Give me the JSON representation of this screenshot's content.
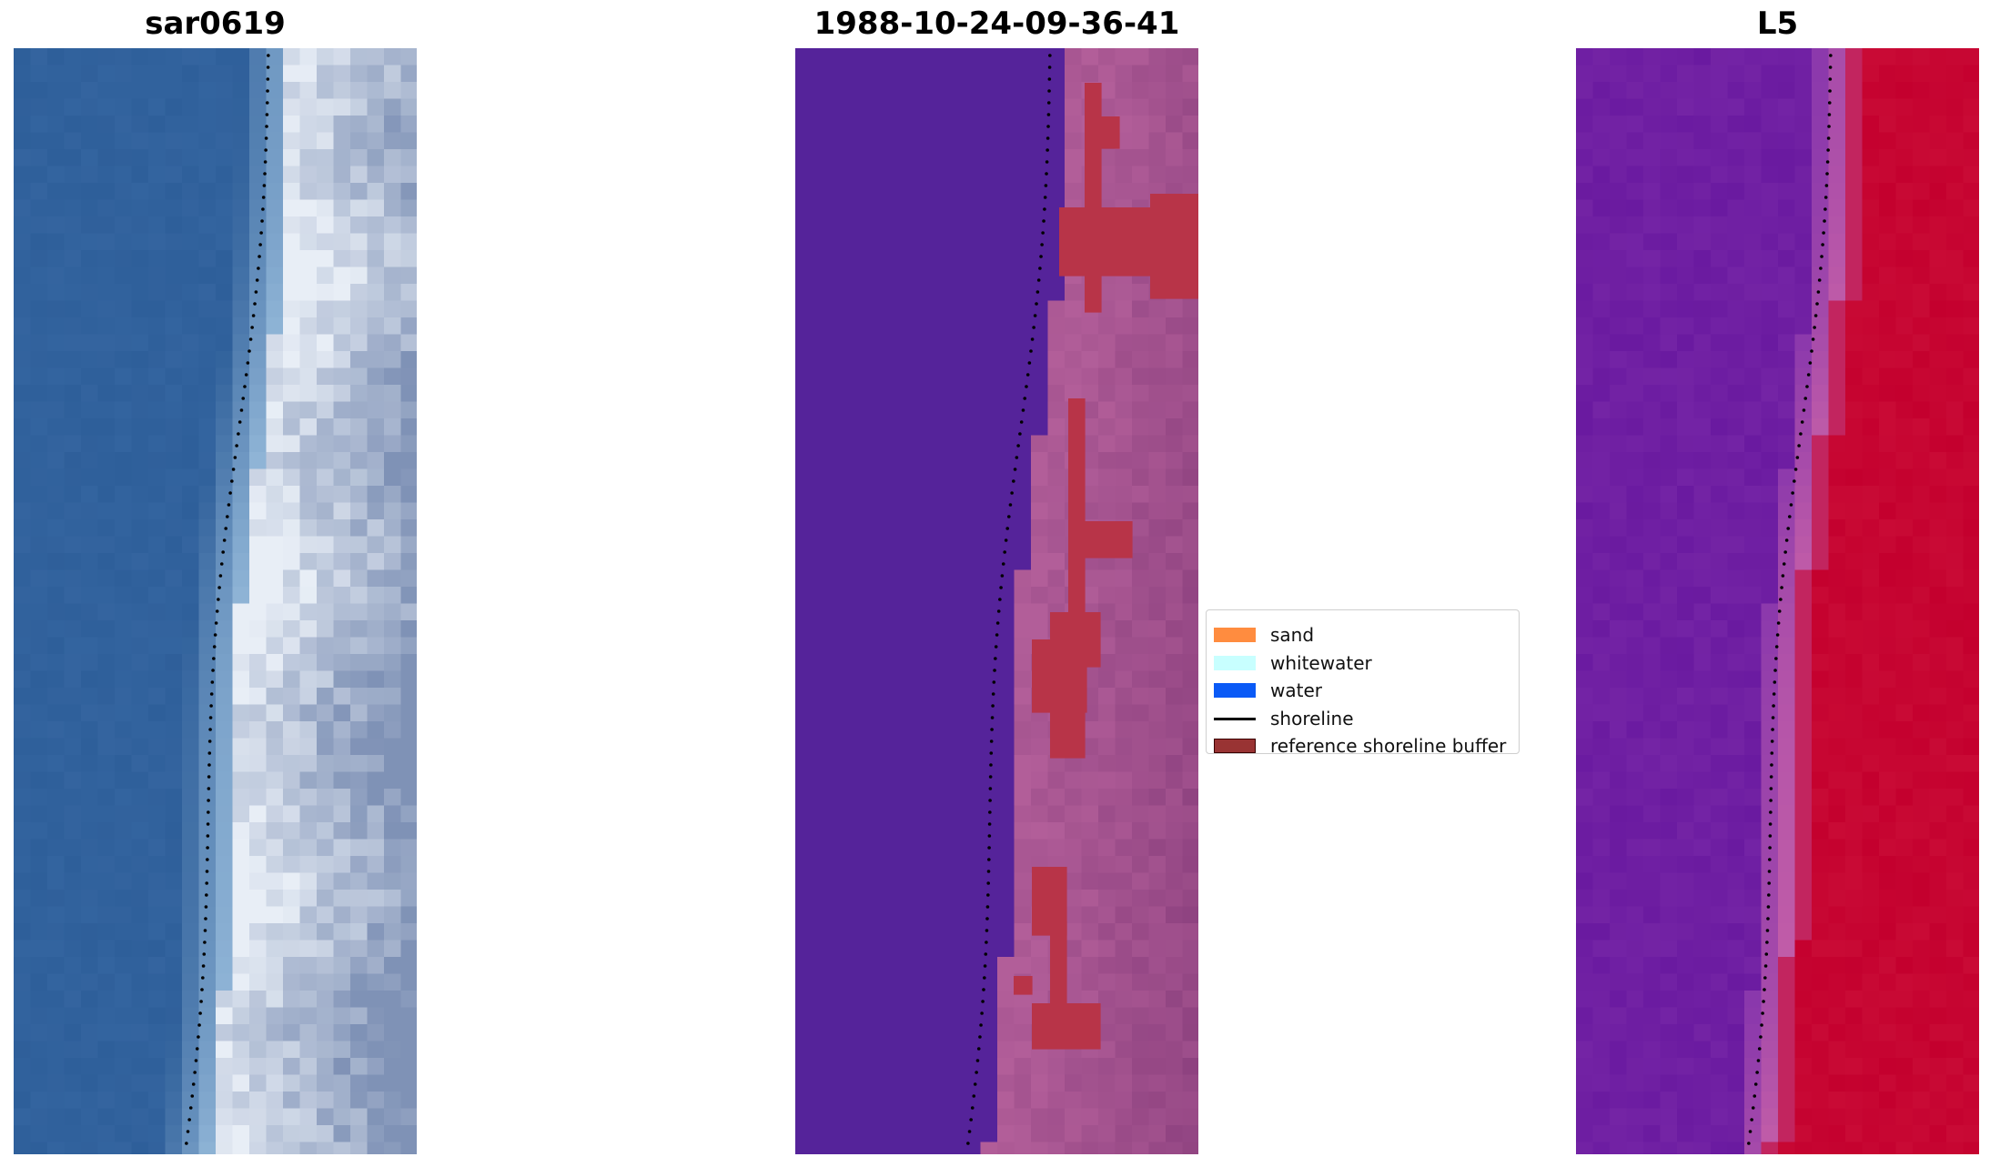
{
  "panels": [
    {
      "title": "sar0619",
      "kind": "rgb"
    },
    {
      "title": "1988-10-24-09-36-41",
      "kind": "classified"
    },
    {
      "title": "L5",
      "kind": "index"
    }
  ],
  "legend": {
    "items": [
      {
        "label": "sand",
        "color": "#ff8c3f",
        "type": "patch"
      },
      {
        "label": "whitewater",
        "color": "#c8ffff",
        "type": "patch"
      },
      {
        "label": "water",
        "color": "#0a5af6",
        "type": "patch"
      },
      {
        "label": "shoreline",
        "color": "#000000",
        "type": "line"
      },
      {
        "label": "reference shoreline buffer",
        "color": "#993333",
        "type": "patch",
        "edge": "#3a0000"
      }
    ]
  },
  "colors": {
    "rgb_water": "#2e5f9a",
    "rgb_surf": "#8fb4d6",
    "rgb_beach": "#e8eef6",
    "classified_water": "#55239a",
    "classified_land": "#b25e99",
    "classified_buffer": "#b83448",
    "index_low": "#6a1aa0",
    "index_mid": "#c05ca8",
    "index_high": "#c4002e",
    "shoreline": "#000000"
  }
}
